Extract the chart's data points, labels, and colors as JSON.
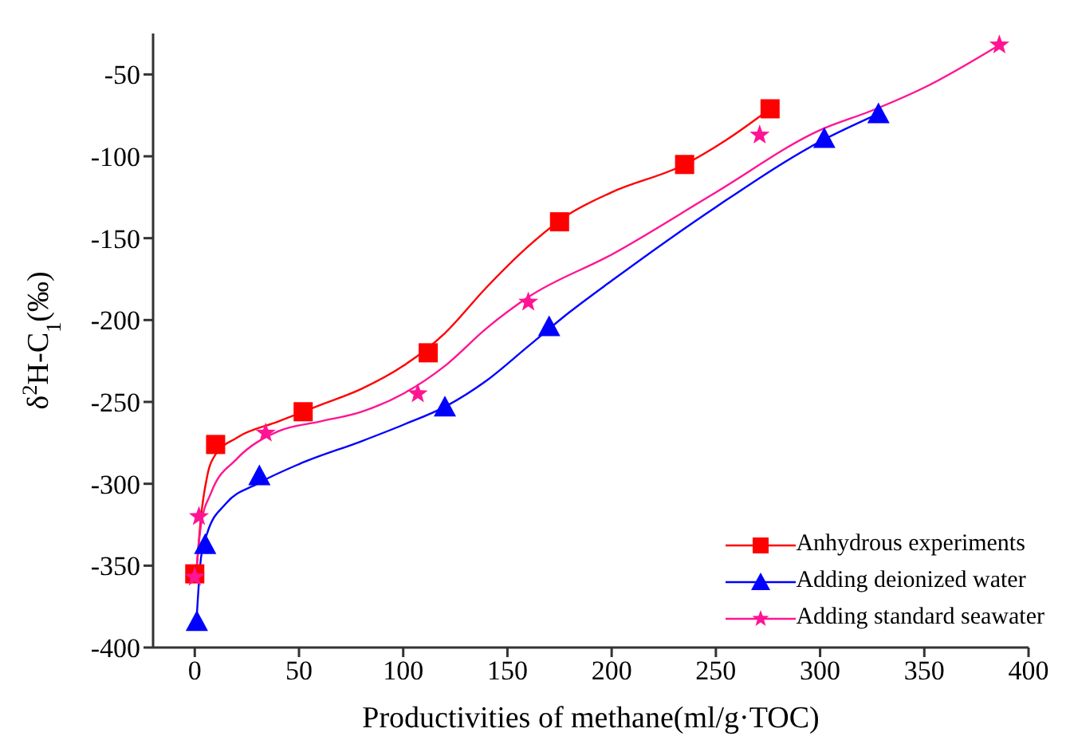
{
  "chart_data": {
    "type": "scatter",
    "xlabel": "Productivities of methane(ml/g·TOC)",
    "ylabel": "δ$^{2}$H-C$_{1}$(‰)",
    "xlim": [
      -20,
      400
    ],
    "xticks": [
      0,
      50,
      100,
      150,
      200,
      250,
      300,
      350,
      400
    ],
    "ylim": [
      -400,
      -25
    ],
    "yticks": [
      -400,
      -350,
      -300,
      -250,
      -200,
      -150,
      -100,
      -50
    ],
    "grid": false,
    "legend": "bottom right",
    "series": [
      {
        "name": "Anhydrous experiments",
        "marker": "square",
        "color": "#ff0000",
        "x": [
          0,
          10,
          52,
          112,
          175,
          235,
          276
        ],
        "values": [
          -355,
          -276,
          -256,
          -220,
          -140,
          -105,
          -71
        ]
      },
      {
        "name": "Adding deionized water",
        "marker": "triangle",
        "color": "#0000ff",
        "x": [
          1,
          5,
          31,
          120,
          170,
          302,
          328
        ],
        "values": [
          -384,
          -337,
          -295,
          -253,
          -204,
          -89,
          -74
        ]
      },
      {
        "name": "Adding standard seawater",
        "marker": "star",
        "color": "#ff1493",
        "x": [
          0,
          2,
          34,
          107,
          160,
          271,
          386
        ],
        "values": [
          -357,
          -320,
          -269,
          -245,
          -189,
          -87,
          -32
        ]
      },
      {
        "type": "line",
        "color": "#ff0000",
        "x": [
          1,
          3,
          6,
          10,
          20,
          40,
          60,
          80,
          100,
          120,
          140,
          160,
          180,
          200,
          235,
          255,
          276
        ],
        "values": [
          -350,
          -320,
          -295,
          -282,
          -272,
          -262,
          -252,
          -242,
          -228,
          -208,
          -180,
          -155,
          -135,
          -122,
          -105,
          -90,
          -71
        ]
      },
      {
        "type": "line",
        "color": "#0000ff",
        "x": [
          1,
          3,
          6,
          15,
          30,
          50,
          80,
          100,
          120,
          140,
          160,
          180,
          200,
          250,
          300,
          328
        ],
        "values": [
          -380,
          -345,
          -330,
          -312,
          -300,
          -288,
          -274,
          -264,
          -253,
          -237,
          -216,
          -195,
          -176,
          -131,
          -91,
          -74
        ]
      },
      {
        "type": "line",
        "color": "#ff1493",
        "x": [
          1,
          3,
          8,
          20,
          40,
          60,
          80,
          100,
          120,
          140,
          160,
          200,
          250,
          300,
          325,
          350,
          386
        ],
        "values": [
          -350,
          -325,
          -305,
          -285,
          -268,
          -262,
          -256,
          -245,
          -228,
          -205,
          -186,
          -160,
          -122,
          -84,
          -72,
          -58,
          -32
        ]
      }
    ]
  }
}
